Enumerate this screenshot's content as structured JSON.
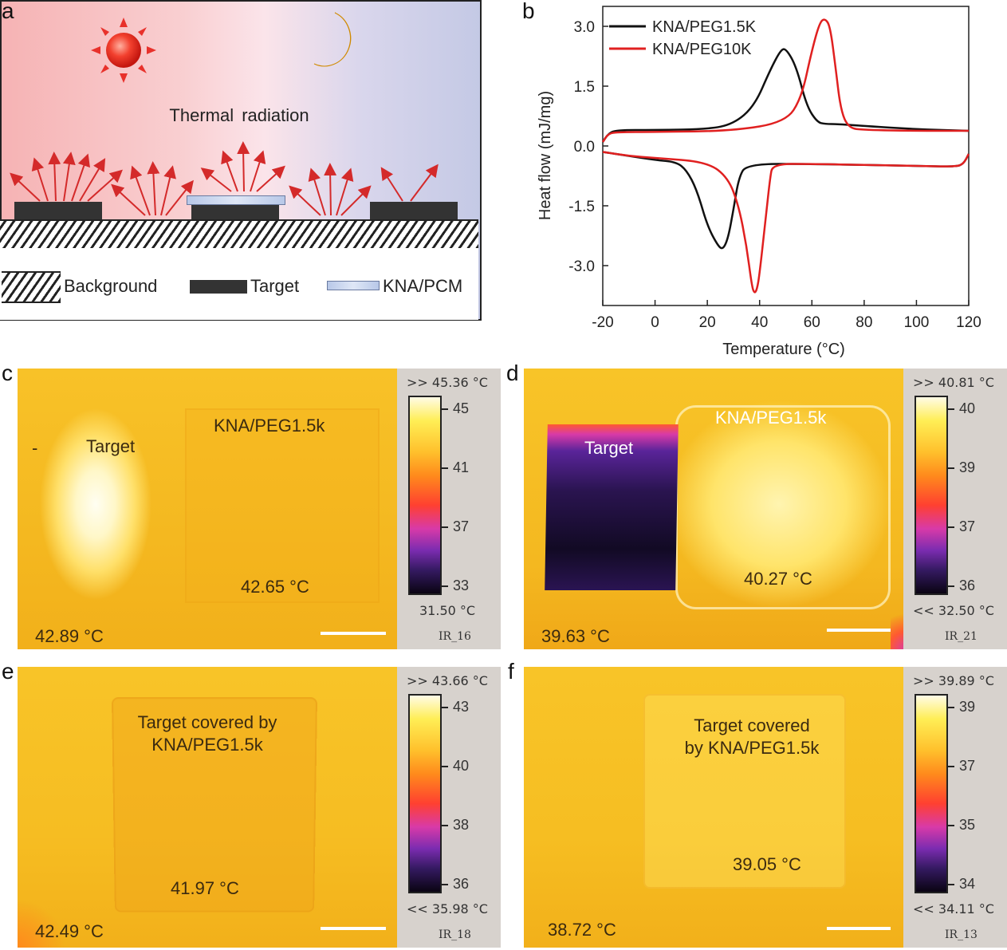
{
  "panel_labels": {
    "a": "a",
    "b": "b",
    "c": "c",
    "d": "d",
    "e": "e",
    "f": "f"
  },
  "panel_a": {
    "text": "Thermal radiation",
    "legend": {
      "background": "Background",
      "target": "Target",
      "kna": "KNA/PCM"
    },
    "colors": {
      "sun": "#e8312b",
      "moon": "#f0b000",
      "arrow": "#d42a2a"
    }
  },
  "chart_data": {
    "type": "line",
    "xlabel": "Temperature (°C)",
    "ylabel": "Heat flow (mJ/mg)",
    "xlim": [
      -20,
      120
    ],
    "ylim": [
      -4.0,
      3.5
    ],
    "xticks": [
      -20,
      0,
      20,
      40,
      60,
      80,
      100,
      120
    ],
    "yticks": [
      3.0,
      1.5,
      0.0,
      -1.5,
      -3.0
    ],
    "ytick_labels": [
      "3.0",
      "1.5",
      "0.0",
      "-1.5",
      "-3.0"
    ],
    "legend_position": "top-left",
    "series": [
      {
        "name": "KNA/PEG1.5K",
        "color": "#111111",
        "segment": "heating",
        "x": [
          -20,
          -18,
          -15,
          0,
          20,
          30,
          38,
          44,
          48,
          50,
          54,
          58,
          62,
          65,
          70,
          80,
          100,
          120
        ],
        "y": [
          0.1,
          0.3,
          0.4,
          0.4,
          0.42,
          0.55,
          1.0,
          1.9,
          2.4,
          2.45,
          2.0,
          1.0,
          0.6,
          0.55,
          0.55,
          0.5,
          0.42,
          0.38
        ]
      },
      {
        "name": "KNA/PEG1.5K",
        "color": "#111111",
        "segment": "cooling",
        "x": [
          120,
          118,
          115,
          100,
          60,
          35,
          32,
          30,
          28,
          26,
          24,
          20,
          16,
          12,
          8,
          0,
          -10,
          -20
        ],
        "y": [
          -0.2,
          -0.45,
          -0.52,
          -0.5,
          -0.45,
          -0.45,
          -0.8,
          -1.6,
          -2.3,
          -2.6,
          -2.5,
          -2.0,
          -1.1,
          -0.6,
          -0.4,
          -0.35,
          -0.25,
          -0.15
        ]
      },
      {
        "name": "KNA/PEG10K",
        "color": "#e02020",
        "segment": "heating",
        "x": [
          -20,
          -18,
          -15,
          0,
          30,
          50,
          56,
          60,
          63,
          65,
          67,
          69,
          71,
          74,
          80,
          100,
          120
        ],
        "y": [
          0.1,
          0.3,
          0.35,
          0.35,
          0.38,
          0.6,
          1.2,
          2.4,
          3.1,
          3.2,
          3.0,
          2.0,
          0.9,
          0.45,
          0.4,
          0.38,
          0.38
        ]
      },
      {
        "name": "KNA/PEG10K",
        "color": "#e02020",
        "segment": "cooling",
        "x": [
          120,
          118,
          115,
          100,
          60,
          45,
          44,
          42,
          40,
          39,
          38,
          37,
          35,
          32,
          28,
          20,
          0,
          -10,
          -20
        ],
        "y": [
          -0.2,
          -0.45,
          -0.52,
          -0.5,
          -0.45,
          -0.45,
          -0.8,
          -2.0,
          -3.2,
          -3.6,
          -3.7,
          -3.5,
          -2.5,
          -1.5,
          -0.8,
          -0.4,
          -0.3,
          -0.25,
          -0.15
        ]
      }
    ]
  },
  "thermal_c": {
    "label_target": "Target",
    "label_sample": "KNA/PEG1.5k",
    "reading_sample": "42.65 °C",
    "reading_spot": "42.89 °C",
    "max": ">> 45.36 °C",
    "min": "31.50 °C",
    "ticks": [
      "45",
      "41",
      "37",
      "33"
    ],
    "id": "IR_16",
    "marker": "-"
  },
  "thermal_d": {
    "label_target": "Target",
    "label_sample": "KNA/PEG1.5k",
    "reading_sample": "40.27 °C",
    "reading_spot": "39.63 °C",
    "max": ">> 40.81 °C",
    "min": "<< 32.50 °C",
    "ticks": [
      "40",
      "39",
      "37",
      "36"
    ],
    "id": "IR_21"
  },
  "thermal_e": {
    "label_line1": "Target covered by",
    "label_line2": "KNA/PEG1.5k",
    "reading_sample": "41.97 °C",
    "reading_spot": "42.49 °C",
    "max": ">> 43.66 °C",
    "min": "<< 35.98 °C",
    "ticks": [
      "43",
      "40",
      "38",
      "36"
    ],
    "id": "IR_18"
  },
  "thermal_f": {
    "label_line1": "Target covered",
    "label_line2": "by KNA/PEG1.5k",
    "reading_sample": "39.05 °C",
    "reading_spot": "38.72 °C",
    "max": ">> 39.89 °C",
    "min": "<< 34.11 °C",
    "ticks": [
      "39",
      "37",
      "35",
      "34"
    ],
    "id": "IR_13"
  }
}
